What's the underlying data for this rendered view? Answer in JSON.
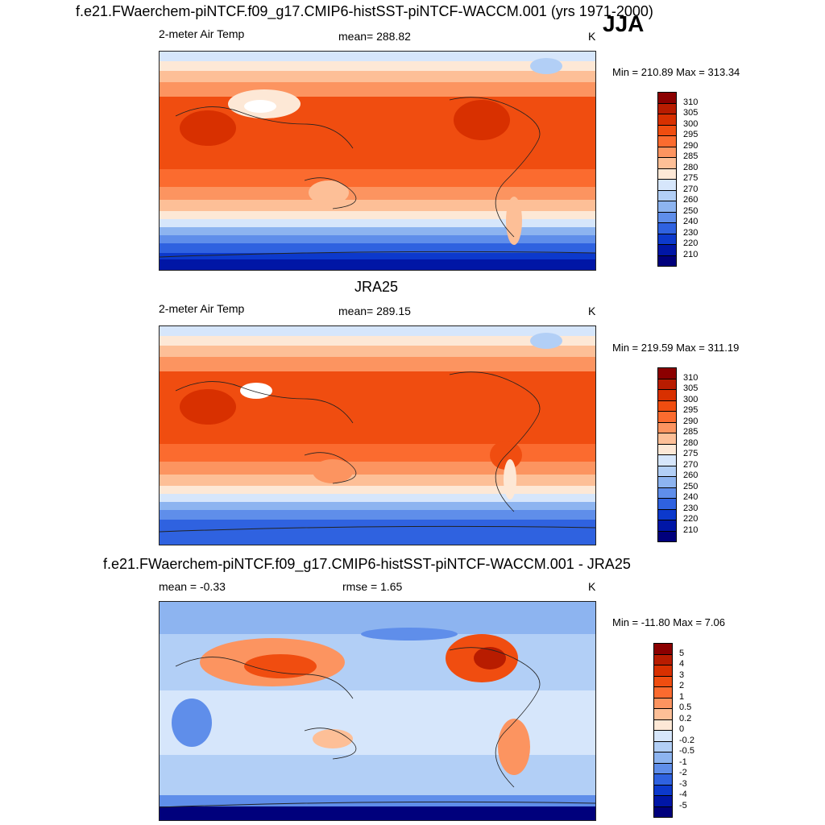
{
  "season": "JJA",
  "panels": [
    {
      "id": "model",
      "title": "f.e21.FWaerchem-piNTCF.f09_g17.CMIP6-histSST-piNTCF-WACCM.001 (yrs 1971-2000)",
      "left_label": "2-meter Air Temp",
      "center_label": "mean= 288.82",
      "units": "K",
      "minmax": "Min = 210.89 Max = 313.34",
      "palette": "warm",
      "colorbar": {
        "ticks": [
          "310",
          "305",
          "300",
          "295",
          "290",
          "285",
          "280",
          "275",
          "270",
          "260",
          "250",
          "240",
          "230",
          "220",
          "210"
        ],
        "colors": [
          "#8b0000",
          "#b81c00",
          "#d83000",
          "#f04d10",
          "#fb6b2f",
          "#fc9460",
          "#fdbf97",
          "#fde8d6",
          "#d6e6fb",
          "#b2cff6",
          "#8db4f0",
          "#5f8eea",
          "#2f62e0",
          "#0c39cc",
          "#0016a6",
          "#00007c"
        ]
      }
    },
    {
      "id": "obs",
      "title": "JRA25",
      "left_label": "2-meter Air Temp",
      "center_label": "mean= 289.15",
      "units": "K",
      "minmax": "Min = 219.59 Max = 311.19",
      "palette": "warm",
      "colorbar": {
        "ticks": [
          "310",
          "305",
          "300",
          "295",
          "290",
          "285",
          "280",
          "275",
          "270",
          "260",
          "250",
          "240",
          "230",
          "220",
          "210"
        ],
        "colors": [
          "#8b0000",
          "#b81c00",
          "#d83000",
          "#f04d10",
          "#fb6b2f",
          "#fc9460",
          "#fdbf97",
          "#fde8d6",
          "#d6e6fb",
          "#b2cff6",
          "#8db4f0",
          "#5f8eea",
          "#2f62e0",
          "#0c39cc",
          "#0016a6",
          "#00007c"
        ]
      }
    },
    {
      "id": "diff",
      "title": "f.e21.FWaerchem-piNTCF.f09_g17.CMIP6-histSST-piNTCF-WACCM.001 - JRA25",
      "left_label": "mean =  -0.33",
      "center_label": "rmse =   1.65",
      "units": "K",
      "minmax": "Min = -11.80 Max =   7.06",
      "palette": "diff",
      "colorbar": {
        "ticks": [
          "5",
          "4",
          "3",
          "2",
          "1",
          "0.5",
          "0.2",
          "0",
          "-0.2",
          "-0.5",
          "-1",
          "-2",
          "-3",
          "-4",
          "-5"
        ],
        "colors": [
          "#8b0000",
          "#b81c00",
          "#d83000",
          "#f04d10",
          "#fb6b2f",
          "#fc9460",
          "#fdbf97",
          "#fde8d6",
          "#d6e6fb",
          "#b2cff6",
          "#8db4f0",
          "#5f8eea",
          "#2f62e0",
          "#0c39cc",
          "#0016a6",
          "#00007c"
        ]
      }
    }
  ]
}
